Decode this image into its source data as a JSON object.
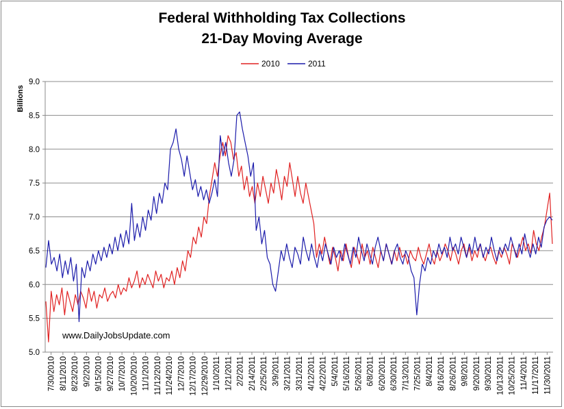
{
  "chart_data": {
    "type": "line",
    "title": "Federal Withholding Tax Collections",
    "subtitle": "21-Day Moving Average",
    "ylabel": "Billions",
    "xlabel": "",
    "ylim": [
      5.0,
      9.0
    ],
    "yticks": [
      "5.0",
      "5.5",
      "6.0",
      "6.5",
      "7.0",
      "7.5",
      "8.0",
      "8.5",
      "9.0"
    ],
    "grid": "horizontal",
    "legend_position": "top",
    "watermark": "www.DailyJobsUpdate.com",
    "x_tick_labels": [
      "7/30/2010",
      "8/11/2010",
      "8/23/2010",
      "9/2/2010",
      "9/15/2010",
      "9/27/2010",
      "10/7/2010",
      "10/20/2010",
      "11/1/2010",
      "11/12/2010",
      "11/24/2010",
      "12/7/2010",
      "12/17/2010",
      "12/29/2010",
      "1/10/2011",
      "1/21/2011",
      "2/2/2011",
      "2/14/2011",
      "2/25/2011",
      "3/9/2011",
      "3/21/2011",
      "3/31/2011",
      "4/12/2011",
      "4/22/2011",
      "5/4/2011",
      "5/16/2011",
      "5/26/2011",
      "6/8/2011",
      "6/20/2011",
      "6/30/2011",
      "7/13/2011",
      "7/25/2011",
      "8/4/2011",
      "8/16/2011",
      "8/26/2011",
      "9/8/2011",
      "9/20/2011",
      "9/30/2011",
      "10/13/2011",
      "10/25/2011",
      "11/4/2011",
      "11/17/2011",
      "11/30/2011"
    ],
    "series": [
      {
        "name": "2010",
        "color": "#e02020",
        "values": [
          5.75,
          5.15,
          5.9,
          5.6,
          5.85,
          5.7,
          5.95,
          5.55,
          5.9,
          5.75,
          5.6,
          5.85,
          5.7,
          5.9,
          5.8,
          5.65,
          5.95,
          5.75,
          5.9,
          5.65,
          5.85,
          5.8,
          5.95,
          5.75,
          5.85,
          5.9,
          5.8,
          6.0,
          5.85,
          5.95,
          5.9,
          6.1,
          5.95,
          6.05,
          6.2,
          5.95,
          6.1,
          6.0,
          6.15,
          6.05,
          5.95,
          6.2,
          6.05,
          6.15,
          5.95,
          6.1,
          6.05,
          6.2,
          6.0,
          6.25,
          6.1,
          6.35,
          6.2,
          6.5,
          6.4,
          6.7,
          6.6,
          6.85,
          6.7,
          7.0,
          6.9,
          7.3,
          7.55,
          7.8,
          7.6,
          7.9,
          8.1,
          7.9,
          8.2,
          8.1,
          7.85,
          7.95,
          7.6,
          7.75,
          7.4,
          7.6,
          7.3,
          7.45,
          7.2,
          7.5,
          7.3,
          7.6,
          7.4,
          7.2,
          7.5,
          7.35,
          7.7,
          7.5,
          7.25,
          7.6,
          7.45,
          7.8,
          7.55,
          7.3,
          7.6,
          7.35,
          7.2,
          7.5,
          7.3,
          7.1,
          6.9,
          6.4,
          6.6,
          6.45,
          6.7,
          6.5,
          6.3,
          6.55,
          6.4,
          6.2,
          6.5,
          6.35,
          6.6,
          6.4,
          6.25,
          6.55,
          6.45,
          6.3,
          6.6,
          6.4,
          6.5,
          6.3,
          6.55,
          6.4,
          6.25,
          6.5,
          6.35,
          6.6,
          6.45,
          6.3,
          6.5,
          6.35,
          6.55,
          6.4,
          6.45,
          6.3,
          6.5,
          6.4,
          6.35,
          6.55,
          6.4,
          6.3,
          6.45,
          6.6,
          6.4,
          6.3,
          6.5,
          6.35,
          6.45,
          6.6,
          6.5,
          6.35,
          6.55,
          6.45,
          6.3,
          6.5,
          6.6,
          6.4,
          6.55,
          6.35,
          6.5,
          6.4,
          6.6,
          6.45,
          6.35,
          6.5,
          6.55,
          6.4,
          6.3,
          6.5,
          6.4,
          6.55,
          6.45,
          6.3,
          6.6,
          6.5,
          6.4,
          6.55,
          6.7,
          6.5,
          6.6,
          6.45,
          6.8,
          6.6,
          6.5,
          6.7,
          6.85,
          7.1,
          7.35,
          6.6
        ],
        "note": "values approximate, read visually"
      },
      {
        "name": "2011",
        "color": "#1a1aaa",
        "values": [
          6.25,
          6.65,
          6.3,
          6.4,
          6.2,
          6.45,
          6.1,
          6.35,
          6.15,
          6.4,
          6.05,
          6.3,
          5.45,
          6.25,
          6.1,
          6.35,
          6.2,
          6.45,
          6.3,
          6.5,
          6.35,
          6.55,
          6.4,
          6.6,
          6.45,
          6.7,
          6.5,
          6.75,
          6.55,
          6.8,
          6.6,
          7.2,
          6.65,
          6.9,
          6.7,
          7.0,
          6.8,
          7.1,
          6.95,
          7.3,
          7.05,
          7.35,
          7.2,
          7.5,
          7.4,
          8.0,
          8.1,
          8.3,
          8.0,
          7.85,
          7.6,
          7.9,
          7.65,
          7.4,
          7.55,
          7.3,
          7.45,
          7.25,
          7.4,
          7.2,
          7.35,
          7.55,
          7.3,
          8.2,
          7.9,
          8.1,
          7.8,
          7.6,
          7.85,
          8.5,
          8.55,
          8.3,
          8.1,
          7.9,
          7.6,
          7.8,
          6.8,
          7.0,
          6.6,
          6.8,
          6.4,
          6.3,
          6.0,
          5.9,
          6.2,
          6.5,
          6.35,
          6.6,
          6.4,
          6.25,
          6.55,
          6.45,
          6.3,
          6.7,
          6.5,
          6.35,
          6.6,
          6.4,
          6.25,
          6.5,
          6.35,
          6.6,
          6.45,
          6.3,
          6.55,
          6.4,
          6.5,
          6.35,
          6.6,
          6.45,
          6.3,
          6.55,
          6.4,
          6.7,
          6.5,
          6.35,
          6.6,
          6.45,
          6.3,
          6.55,
          6.7,
          6.5,
          6.35,
          6.6,
          6.45,
          6.3,
          6.5,
          6.6,
          6.4,
          6.3,
          6.5,
          6.4,
          6.2,
          6.1,
          5.55,
          6.0,
          6.3,
          6.2,
          6.4,
          6.3,
          6.5,
          6.4,
          6.6,
          6.45,
          6.55,
          6.4,
          6.7,
          6.5,
          6.6,
          6.45,
          6.7,
          6.55,
          6.4,
          6.6,
          6.45,
          6.7,
          6.5,
          6.6,
          6.4,
          6.55,
          6.45,
          6.7,
          6.5,
          6.35,
          6.55,
          6.45,
          6.6,
          6.5,
          6.7,
          6.55,
          6.4,
          6.6,
          6.45,
          6.75,
          6.55,
          6.4,
          6.6,
          6.45,
          6.7,
          6.55,
          6.85,
          6.95,
          7.0,
          6.95
        ]
      }
    ]
  }
}
